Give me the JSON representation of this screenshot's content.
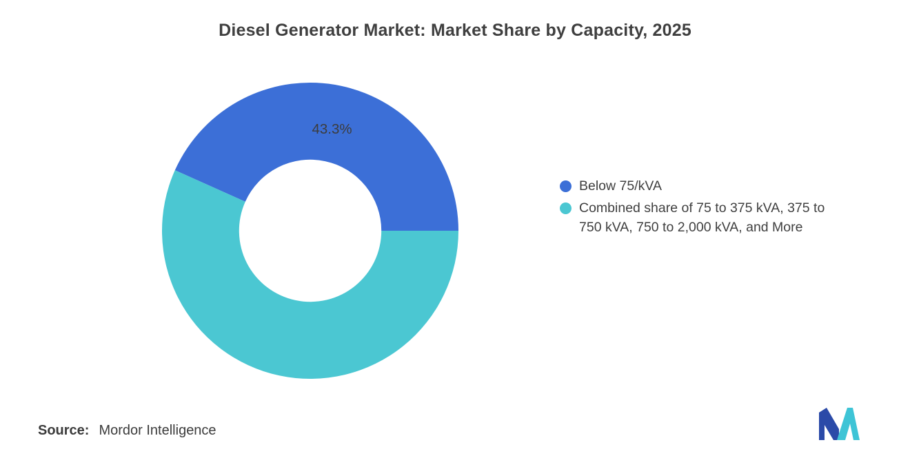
{
  "title": "Diesel Generator Market: Market Share by Capacity, 2025",
  "chart_data": {
    "type": "pie",
    "donut": true,
    "title": "Diesel Generator Market: Market Share by Capacity, 2025",
    "values_unit": "percent",
    "start_angle_deg": 0,
    "direction": "counterclockwise",
    "inner_radius_ratio": 0.48,
    "legend_position": "right",
    "slices": [
      {
        "name": "Below 75/kVA",
        "value": 43.3,
        "color": "#3c6fd7",
        "data_label": "43.3%"
      },
      {
        "name": "Combined share of 75 to 375 kVA, 375 to 750 kVA, 750 to 2,000 kVA, and More",
        "value": 56.7,
        "color": "#4bc7d2",
        "data_label": null
      }
    ],
    "data_label_color": "#3c3c3c"
  },
  "legend": {
    "items": [
      {
        "label": "Below 75/kVA",
        "color": "#3c6fd7"
      },
      {
        "label": "Combined share of 75 to 375 kVA, 375 to 750 kVA, 750 to 2,000 kVA, and More",
        "color": "#4bc7d2"
      }
    ]
  },
  "source": {
    "label": "Source:",
    "value": "Mordor Intelligence"
  },
  "logo": {
    "name": "mordor-intelligence-logo",
    "blue_color": "#2b4aa8",
    "teal_color": "#3ec4d6"
  }
}
